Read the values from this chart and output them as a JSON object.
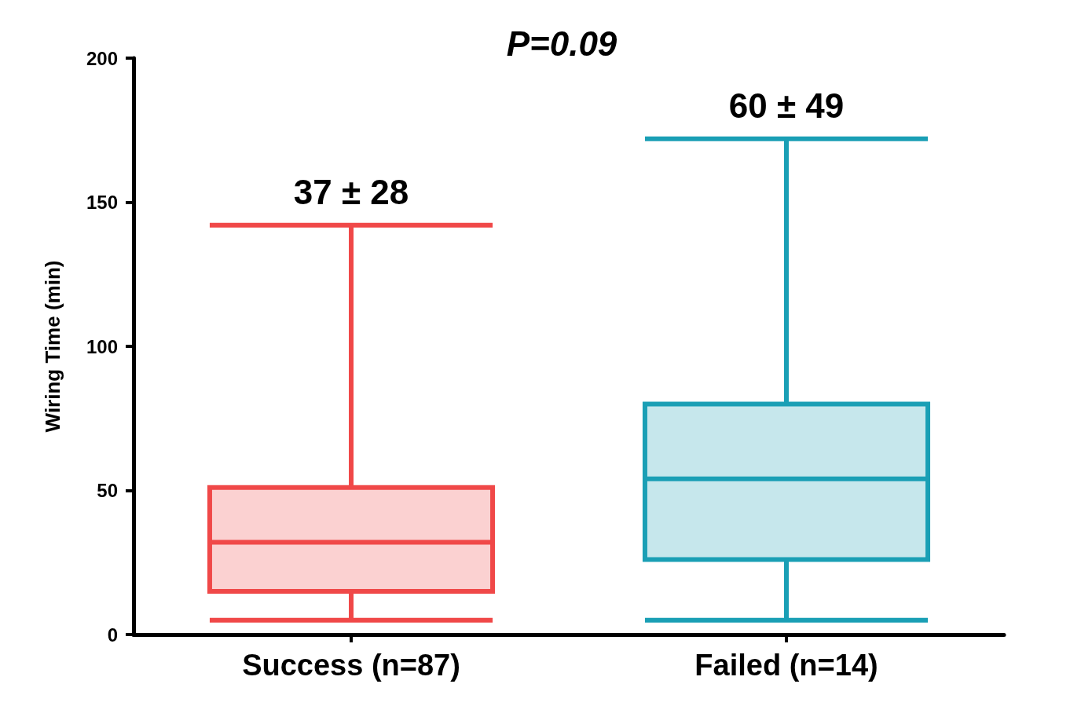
{
  "chart_data": {
    "type": "box",
    "title": "P=0.09",
    "ylabel": "Wiring Time (min)",
    "categories": [
      "Success (n=87)",
      "Failed (n=14)"
    ],
    "boxes": [
      {
        "low": 5,
        "q1": 15,
        "median": 32,
        "q3": 51,
        "high": 142
      },
      {
        "low": 5,
        "q1": 26,
        "median": 54,
        "q3": 80,
        "high": 172
      }
    ],
    "colors": [
      "#f04848",
      "#1a9fb5"
    ],
    "ylim": [
      0,
      200
    ],
    "yticks": [
      0,
      50,
      100,
      150,
      200
    ],
    "grid": false,
    "annotations": [
      {
        "text": "37 ± 28",
        "x": "Success (n=87)",
        "y": 142
      },
      {
        "text": "60 ± 49",
        "x": "Failed (n=14)",
        "y": 172
      }
    ]
  }
}
